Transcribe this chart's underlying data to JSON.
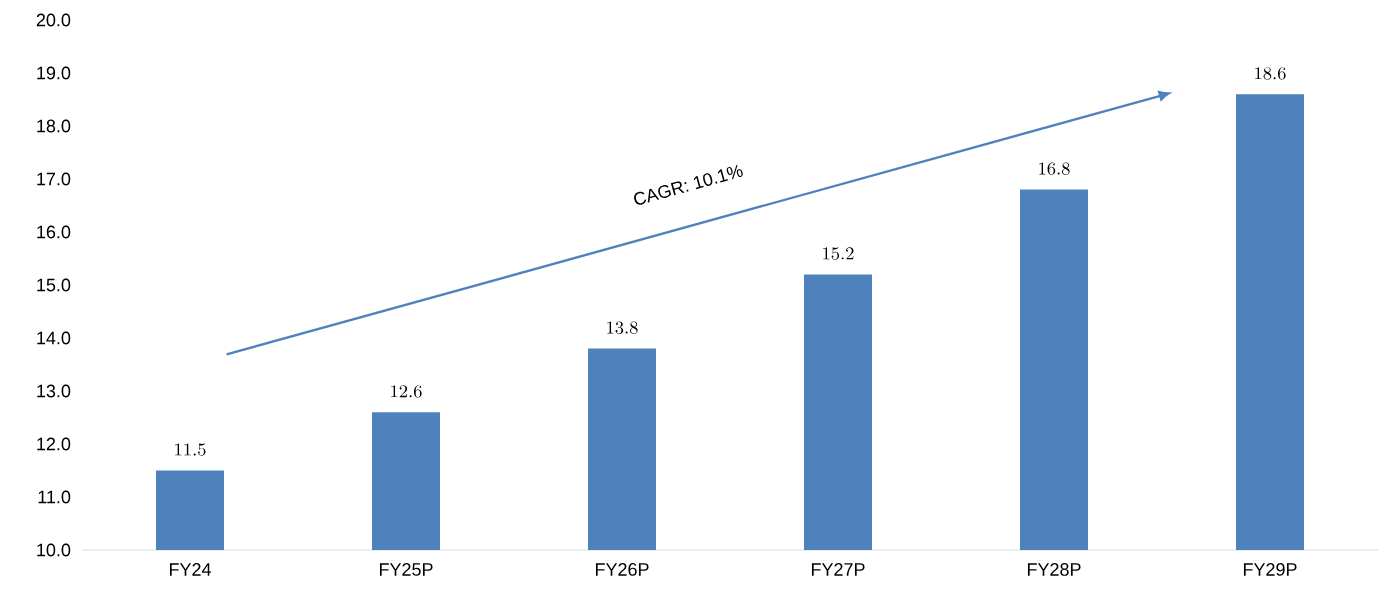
{
  "chart_data": {
    "type": "bar",
    "categories": [
      "FY24",
      "FY25P",
      "FY26P",
      "FY27P",
      "FY28P",
      "FY29P"
    ],
    "values": [
      11.5,
      12.6,
      13.8,
      15.2,
      16.8,
      18.6
    ],
    "color": "#4f81bd",
    "ylim": [
      10,
      20
    ],
    "yticks": [
      {
        "value": 10,
        "label": "10.0"
      },
      {
        "value": 11,
        "label": "11.0"
      },
      {
        "value": 12,
        "label": "12.0"
      },
      {
        "value": 13,
        "label": "13.0"
      },
      {
        "value": 14,
        "label": "14.0"
      },
      {
        "value": 15,
        "label": "15.0"
      },
      {
        "value": 16,
        "label": "16.0"
      },
      {
        "value": 17,
        "label": "17.0"
      },
      {
        "value": 18,
        "label": "18.0"
      },
      {
        "value": 19,
        "label": "19.0"
      },
      {
        "value": 20,
        "label": "20.0"
      }
    ],
    "data_labels": true,
    "annotations": [
      "CAGR: 10.1%"
    ]
  }
}
